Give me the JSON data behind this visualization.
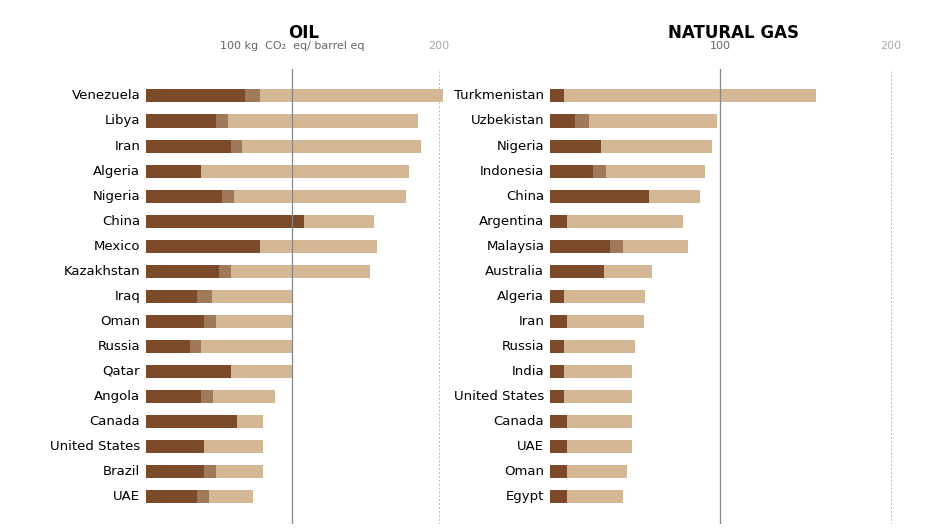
{
  "oil_countries": [
    "Venezuela",
    "Libya",
    "Iran",
    "Algeria",
    "Nigeria",
    "China",
    "Mexico",
    "Kazakhstan",
    "Iraq",
    "Oman",
    "Russia",
    "Qatar",
    "Angola",
    "Canada",
    "United States",
    "Brazil",
    "UAE"
  ],
  "oil_dark": [
    68,
    48,
    58,
    38,
    52,
    108,
    78,
    50,
    35,
    40,
    30,
    58,
    38,
    62,
    40,
    40,
    35
  ],
  "oil_medium": [
    10,
    8,
    8,
    0,
    8,
    0,
    0,
    8,
    10,
    8,
    8,
    0,
    8,
    0,
    0,
    8,
    8
  ],
  "oil_light": [
    125,
    130,
    122,
    142,
    118,
    48,
    80,
    95,
    55,
    52,
    62,
    42,
    42,
    18,
    40,
    32,
    30
  ],
  "gas_countries": [
    "Turkmenistan",
    "Uzbekistan",
    "Nigeria",
    "Indonesia",
    "China",
    "Argentina",
    "Malaysia",
    "Australia",
    "Algeria",
    "Iran",
    "Russia",
    "India",
    "United States",
    "Canada",
    "UAE",
    "Oman",
    "Egypt"
  ],
  "gas_dark": [
    8,
    15,
    30,
    25,
    58,
    10,
    35,
    32,
    8,
    10,
    8,
    8,
    8,
    10,
    10,
    10,
    10
  ],
  "gas_medium": [
    0,
    8,
    0,
    8,
    0,
    0,
    8,
    0,
    0,
    0,
    0,
    0,
    0,
    0,
    0,
    0,
    0
  ],
  "gas_light": [
    148,
    75,
    65,
    58,
    30,
    68,
    38,
    28,
    48,
    45,
    42,
    40,
    40,
    38,
    38,
    35,
    33
  ],
  "color_dark": "#7B4A28",
  "color_medium": "#A0785A",
  "color_light": "#D4B896",
  "oil_title": "OIL",
  "gas_title": "NATURAL GAS",
  "oil_xlabel": "100 kg  CO₂  eq/ barrel eq",
  "gas_xlabel": "100",
  "xmax": 215,
  "bg_color": "#FFFFFF",
  "vline_color": "#888888",
  "dot_color": "#BBBBBB"
}
